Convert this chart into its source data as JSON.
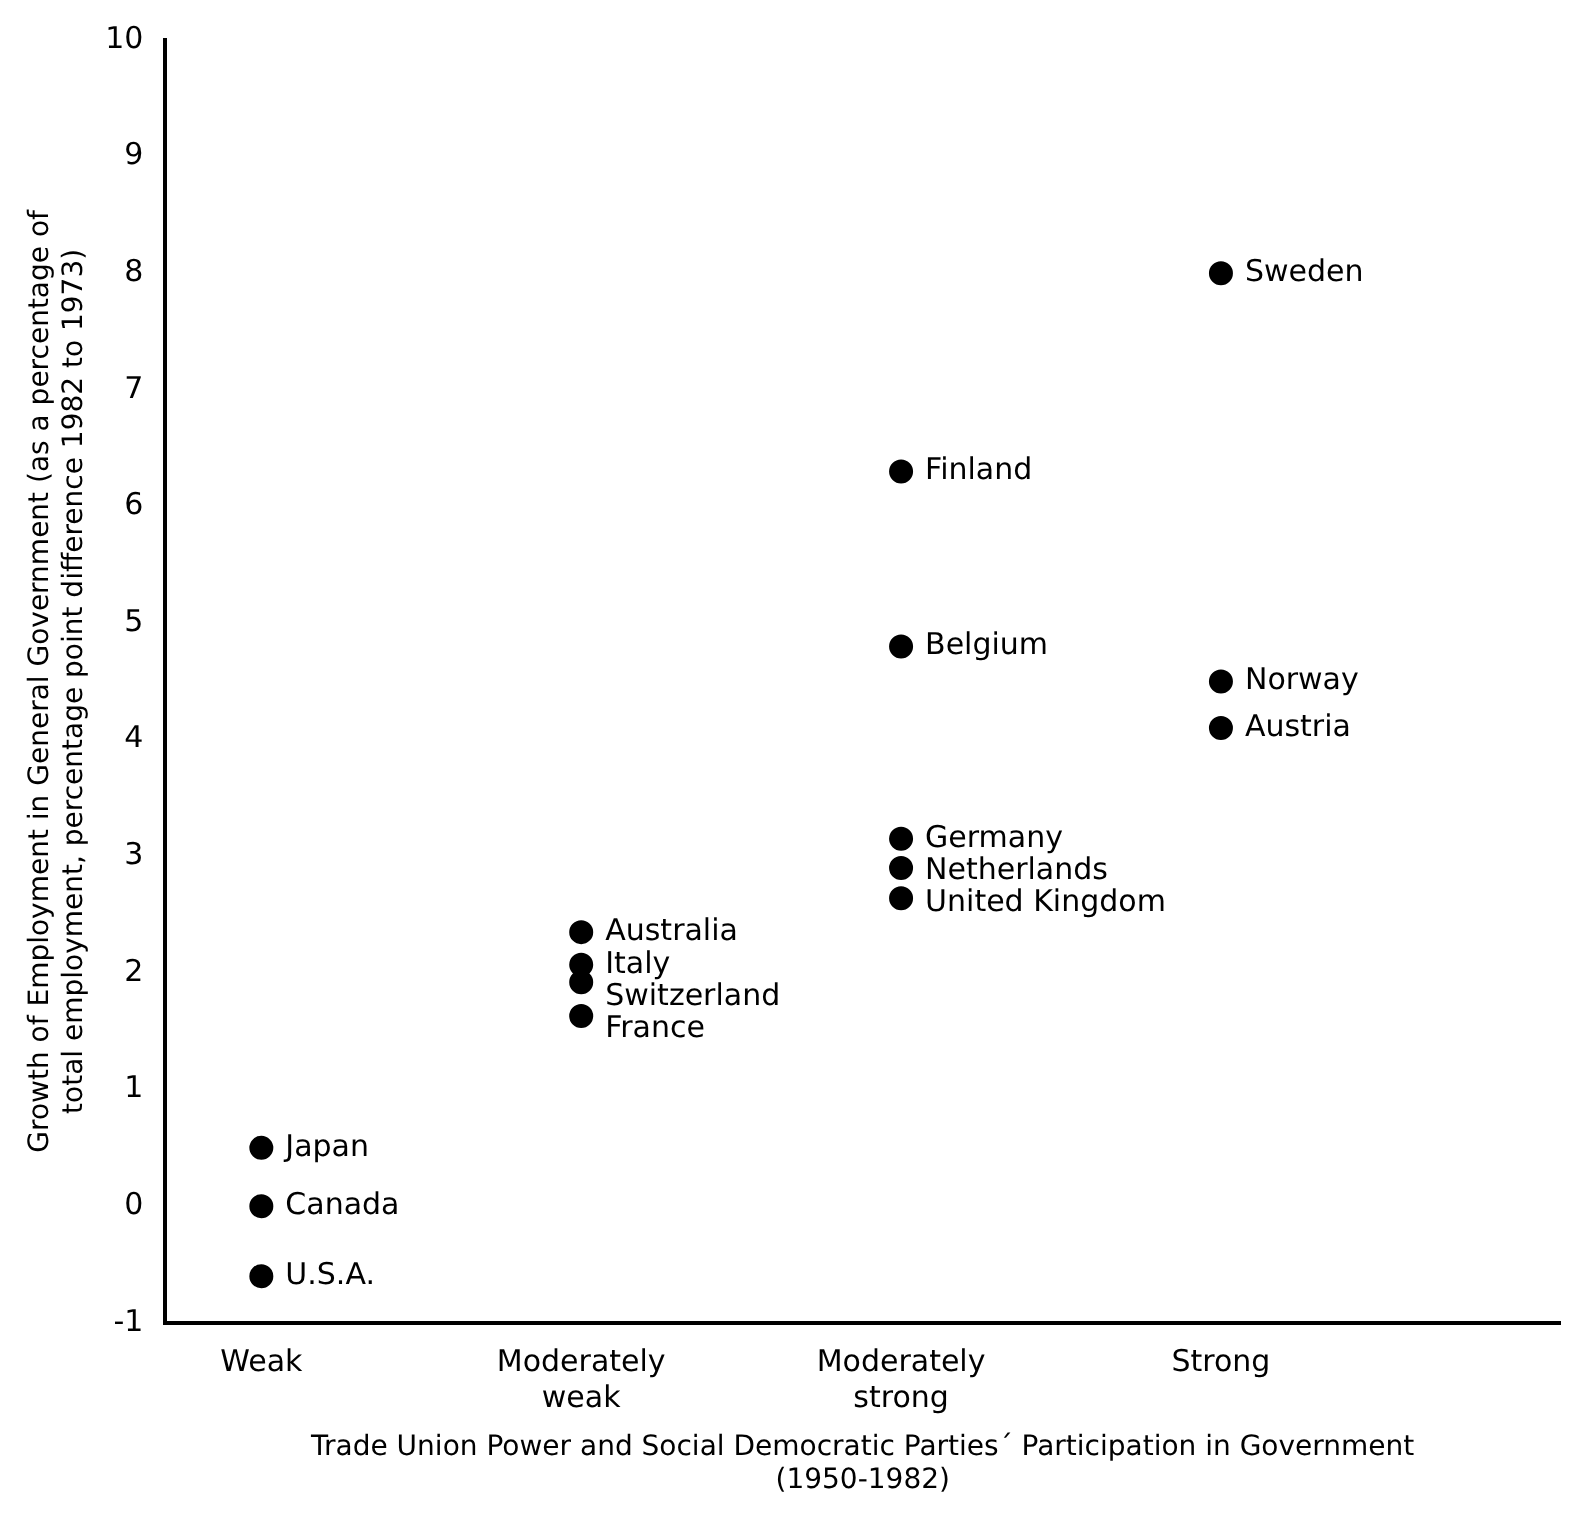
{
  "chart_data": {
    "type": "scatter",
    "xlabel": "Trade Union Power and Social Democratic Parties´ Participation in Government (1950-1982)",
    "ylabel": "Growth of Employment in General Government (as a percentage of total employment, percentage point difference 1982 to 1973)",
    "categories": [
      "Weak",
      "Moderately weak",
      "Moderately strong",
      "Strong"
    ],
    "ylim": [
      -1,
      10
    ],
    "yticks": [
      -1,
      0,
      1,
      2,
      3,
      4,
      5,
      6,
      7,
      8,
      9,
      10
    ],
    "grid": false,
    "legend": false,
    "marker": "circle",
    "series": [
      {
        "name": "Japan",
        "color": "#000000",
        "x": [
          "Weak"
        ],
        "values": [
          0.5
        ]
      },
      {
        "name": "Canada",
        "color": "#000000",
        "x": [
          "Weak"
        ],
        "values": [
          0
        ]
      },
      {
        "name": "U.S.A.",
        "color": "#000000",
        "x": [
          "Weak"
        ],
        "values": [
          -0.6
        ]
      },
      {
        "name": "Australia",
        "color": "#000000",
        "x": [
          "Moderately weak"
        ],
        "values": [
          2.35
        ]
      },
      {
        "name": "Italy",
        "color": "#000000",
        "x": [
          "Moderately weak"
        ],
        "values": [
          2.07
        ]
      },
      {
        "name": "Switzerland",
        "color": "#000000",
        "x": [
          "Moderately weak"
        ],
        "values": [
          1.92
        ]
      },
      {
        "name": "France",
        "color": "#000000",
        "x": [
          "Moderately weak"
        ],
        "values": [
          1.63
        ]
      },
      {
        "name": "Finland",
        "color": "#000000",
        "x": [
          "Moderately strong"
        ],
        "values": [
          6.3
        ]
      },
      {
        "name": "Belgium",
        "color": "#000000",
        "x": [
          "Moderately strong"
        ],
        "values": [
          4.8
        ]
      },
      {
        "name": "Germany",
        "color": "#000000",
        "x": [
          "Moderately strong"
        ],
        "values": [
          3.15
        ]
      },
      {
        "name": "Netherlands",
        "color": "#000000",
        "x": [
          "Moderately strong"
        ],
        "values": [
          2.9
        ]
      },
      {
        "name": "United Kingdom",
        "color": "#000000",
        "x": [
          "Moderately strong"
        ],
        "values": [
          2.64
        ]
      },
      {
        "name": "Sweden",
        "color": "#000000",
        "x": [
          "Strong"
        ],
        "values": [
          8
        ]
      },
      {
        "name": "Norway",
        "color": "#000000",
        "x": [
          "Strong"
        ],
        "values": [
          4.5
        ]
      },
      {
        "name": "Austria",
        "color": "#000000",
        "x": [
          "Strong"
        ],
        "values": [
          4.1
        ]
      }
    ]
  }
}
